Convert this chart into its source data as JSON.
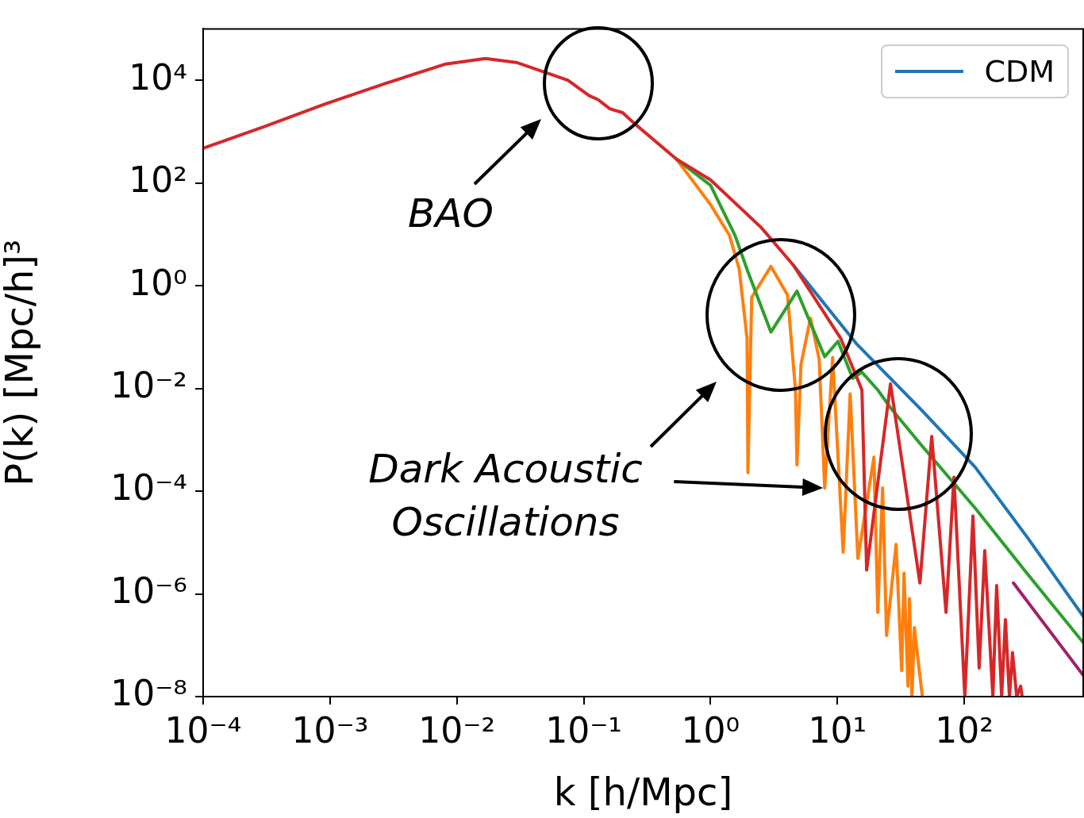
{
  "chart_data": {
    "type": "line",
    "xlabel": "k [h/Mpc]",
    "ylabel": "P(k) [Mpc/h]³",
    "log": "xy",
    "grid": false,
    "legend": "top right",
    "marker": "none",
    "line_style": "solid",
    "xlim": [
      0.0001,
      866
    ],
    "ylim": [
      1e-08,
      100000
    ],
    "xticks": [
      {
        "value": 0.0001,
        "label": "10⁻⁴"
      },
      {
        "value": 0.001,
        "label": "10⁻³"
      },
      {
        "value": 0.01,
        "label": "10⁻²"
      },
      {
        "value": 0.1,
        "label": "10⁻¹"
      },
      {
        "value": 1,
        "label": "10⁰"
      },
      {
        "value": 10,
        "label": "10¹"
      },
      {
        "value": 100,
        "label": "10²"
      }
    ],
    "yticks": [
      {
        "value": 1e-08,
        "label": "10⁻⁸"
      },
      {
        "value": 1e-06,
        "label": "10⁻⁶"
      },
      {
        "value": 0.0001,
        "label": "10⁻⁴"
      },
      {
        "value": 0.01,
        "label": "10⁻²"
      },
      {
        "value": 1,
        "label": "10⁰"
      },
      {
        "value": 100,
        "label": "10²"
      },
      {
        "value": 10000,
        "label": "10⁴"
      }
    ],
    "annotations": [
      "BAO",
      {
        "text": "Dark Acoustic Oscillations",
        "x": 7.94,
        "y": 0.000115
      }
    ],
    "series": [
      {
        "name": "CDM",
        "color": "#1f77b4",
        "x": [
          4.47,
          14.1,
          46.7,
          122,
          321,
          866
        ],
        "values": [
          2.55,
          0.0745,
          0.00366,
          0.000292,
          1.17e-05,
          3.66e-07
        ]
      },
      {
        "color": "#ff7f0e",
        "x": [
          0.538,
          1,
          1.41,
          1.68,
          1.94,
          1.97,
          2.11,
          2.99,
          4.04,
          4.67,
          4.8,
          5.16,
          6.13,
          7.18,
          7.94,
          9.17,
          11.1,
          12.6,
          14.5,
          19.4,
          20.8,
          22.7,
          24.4,
          29,
          32.1,
          33.5,
          36,
          37,
          38.7,
          40.4,
          46.7
        ],
        "values": [
          292,
          37.9,
          9.49,
          2.14,
          0.0948,
          0.00023,
          0.594,
          2.38,
          0.66,
          0.00933,
          0.000324,
          0.0292,
          0.233,
          0.0372,
          0.000115,
          0.04,
          6.5e-06,
          0.00785,
          4.9e-06,
          0.00046,
          4.36e-07,
          0.000115,
          1.55e-07,
          9.2e-06,
          3.2e-08,
          2.55e-06,
          1.6e-08,
          8.1e-07,
          1e-08,
          2.2e-07,
          1e-08
        ]
      },
      {
        "color": "#2ca02c",
        "x": [
          0.538,
          1,
          1.56,
          1.97,
          2.99,
          4.8,
          7.94,
          10.1,
          13.2,
          15.6,
          20.8,
          26.2,
          46.7,
          122,
          321,
          866
        ],
        "values": [
          292,
          90,
          9.5,
          1.87,
          0.125,
          0.785,
          0.0414,
          0.0826,
          0.0157,
          0.0207,
          0.00933,
          0.0042,
          0.000745,
          4.67e-05,
          2.3e-06,
          1.13e-07
        ]
      },
      {
        "color": "#d62728",
        "x": [
          0.0001,
          0.000303,
          0.000904,
          0.00274,
          0.00818,
          0.0168,
          0.0294,
          0.075,
          0.1106,
          0.1296,
          0.1607,
          0.2024,
          0.251,
          0.538,
          1,
          2.51,
          4.47,
          10.6,
          15.6,
          17,
          26.2,
          44.7,
          55.4,
          71.8,
          82.9,
          101,
          117,
          131,
          145,
          168,
          180,
          197,
          211,
          227,
          240,
          259,
          278,
          286
        ],
        "values": [
          475,
          1250,
          3420,
          8700,
          20700,
          26400,
          22200,
          10000,
          5000,
          4210,
          2780,
          2340,
          1440,
          292,
          115,
          13.5,
          2.55,
          0.0948,
          0.00933,
          2.92e-06,
          0.0123,
          1.63e-06,
          0.00117,
          4.36e-07,
          0.000187,
          1e-08,
          3.3e-05,
          3.6e-08,
          6.95e-06,
          1e-08,
          1.46e-06,
          1e-08,
          3.16e-07,
          1e-08,
          7.2e-08,
          1e-08,
          1.6e-08,
          1e-08
        ]
      },
      {
        "color": "#a0206a",
        "x": [
          244,
          866
        ],
        "values": [
          1.63e-06,
          2.6e-08
        ]
      }
    ]
  }
}
